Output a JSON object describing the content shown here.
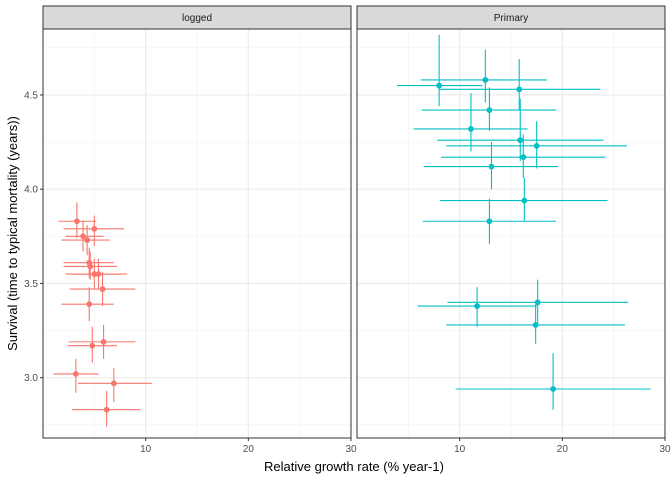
{
  "chart_data": {
    "type": "scatter",
    "error_bars": true,
    "xlabel": "Relative growth rate (% year-1)",
    "ylabel": "Survival (time to typical mortality (years))",
    "xlim": [
      0,
      30
    ],
    "ylim": [
      2.68,
      4.85
    ],
    "x_ticks": [
      10,
      20,
      30
    ],
    "y_ticks": [
      3.0,
      3.5,
      4.0,
      4.5
    ],
    "y_tick_labels": [
      "3.0",
      "3.5",
      "4.0",
      "4.5"
    ],
    "x_tick_labels": [
      "10",
      "20",
      "30"
    ],
    "grid": true,
    "facet_label_shown": "logged",
    "facets": [
      {
        "label": "logged",
        "color": "#F8766D",
        "points": [
          {
            "x": 3.3,
            "y": 3.83,
            "xmin": 1.5,
            "xmax": 5.2,
            "ymin": 3.74,
            "ymax": 3.93
          },
          {
            "x": 5.0,
            "y": 3.79,
            "xmin": 2.0,
            "xmax": 7.9,
            "ymin": 3.7,
            "ymax": 3.86
          },
          {
            "x": 3.9,
            "y": 3.75,
            "xmin": 2.2,
            "xmax": 5.9,
            "ymin": 3.67,
            "ymax": 3.83
          },
          {
            "x": 4.3,
            "y": 3.73,
            "xmin": 1.8,
            "xmax": 6.5,
            "ymin": 3.65,
            "ymax": 3.81
          },
          {
            "x": 4.5,
            "y": 3.61,
            "xmin": 2.0,
            "xmax": 6.9,
            "ymin": 3.53,
            "ymax": 3.69
          },
          {
            "x": 4.6,
            "y": 3.59,
            "xmin": 2.0,
            "xmax": 7.2,
            "ymin": 3.52,
            "ymax": 3.67
          },
          {
            "x": 5.0,
            "y": 3.55,
            "xmin": 2.2,
            "xmax": 7.7,
            "ymin": 3.47,
            "ymax": 3.63
          },
          {
            "x": 5.4,
            "y": 3.55,
            "xmin": 2.7,
            "xmax": 8.2,
            "ymin": 3.47,
            "ymax": 3.63
          },
          {
            "x": 5.8,
            "y": 3.47,
            "xmin": 2.6,
            "xmax": 9.0,
            "ymin": 3.38,
            "ymax": 3.56
          },
          {
            "x": 4.5,
            "y": 3.39,
            "xmin": 1.8,
            "xmax": 6.9,
            "ymin": 3.3,
            "ymax": 3.48
          },
          {
            "x": 5.9,
            "y": 3.19,
            "xmin": 2.5,
            "xmax": 9.0,
            "ymin": 3.1,
            "ymax": 3.28
          },
          {
            "x": 4.8,
            "y": 3.17,
            "xmin": 2.4,
            "xmax": 7.2,
            "ymin": 3.08,
            "ymax": 3.27
          },
          {
            "x": 3.2,
            "y": 3.02,
            "xmin": 1.0,
            "xmax": 5.4,
            "ymin": 2.92,
            "ymax": 3.1
          },
          {
            "x": 6.9,
            "y": 2.97,
            "xmin": 3.4,
            "xmax": 10.6,
            "ymin": 2.87,
            "ymax": 3.05
          },
          {
            "x": 6.2,
            "y": 2.83,
            "xmin": 2.8,
            "xmax": 9.5,
            "ymin": 2.74,
            "ymax": 2.93
          }
        ]
      },
      {
        "label": "Primary",
        "color": "#00BFC4",
        "points": [
          {
            "x": 12.5,
            "y": 4.58,
            "xmin": 6.2,
            "xmax": 18.5,
            "ymin": 4.46,
            "ymax": 4.74
          },
          {
            "x": 8.0,
            "y": 4.55,
            "xmin": 3.9,
            "xmax": 12.2,
            "ymin": 4.44,
            "ymax": 4.82
          },
          {
            "x": 15.8,
            "y": 4.53,
            "xmin": 8.0,
            "xmax": 23.7,
            "ymin": 4.42,
            "ymax": 4.69
          },
          {
            "x": 12.9,
            "y": 4.42,
            "xmin": 6.3,
            "xmax": 19.4,
            "ymin": 4.31,
            "ymax": 4.54
          },
          {
            "x": 11.1,
            "y": 4.32,
            "xmin": 5.5,
            "xmax": 16.6,
            "ymin": 4.2,
            "ymax": 4.51
          },
          {
            "x": 15.9,
            "y": 4.26,
            "xmin": 7.8,
            "xmax": 24.0,
            "ymin": 4.15,
            "ymax": 4.48
          },
          {
            "x": 17.5,
            "y": 4.23,
            "xmin": 8.7,
            "xmax": 26.3,
            "ymin": 4.11,
            "ymax": 4.36
          },
          {
            "x": 16.2,
            "y": 4.17,
            "xmin": 8.2,
            "xmax": 24.2,
            "ymin": 4.06,
            "ymax": 4.29
          },
          {
            "x": 13.1,
            "y": 4.12,
            "xmin": 6.5,
            "xmax": 19.6,
            "ymin": 4.0,
            "ymax": 4.25
          },
          {
            "x": 16.3,
            "y": 3.94,
            "xmin": 8.1,
            "xmax": 24.4,
            "ymin": 3.83,
            "ymax": 4.06
          },
          {
            "x": 12.9,
            "y": 3.83,
            "xmin": 6.4,
            "xmax": 19.4,
            "ymin": 3.71,
            "ymax": 3.95
          },
          {
            "x": 17.6,
            "y": 3.4,
            "xmin": 8.8,
            "xmax": 26.4,
            "ymin": 3.29,
            "ymax": 3.52
          },
          {
            "x": 11.7,
            "y": 3.38,
            "xmin": 5.9,
            "xmax": 17.5,
            "ymin": 3.27,
            "ymax": 3.48
          },
          {
            "x": 17.4,
            "y": 3.28,
            "xmin": 8.7,
            "xmax": 26.1,
            "ymin": 3.18,
            "ymax": 3.39
          },
          {
            "x": 19.1,
            "y": 2.94,
            "xmin": 9.6,
            "xmax": 28.6,
            "ymin": 2.83,
            "ymax": 3.13
          }
        ]
      }
    ]
  }
}
